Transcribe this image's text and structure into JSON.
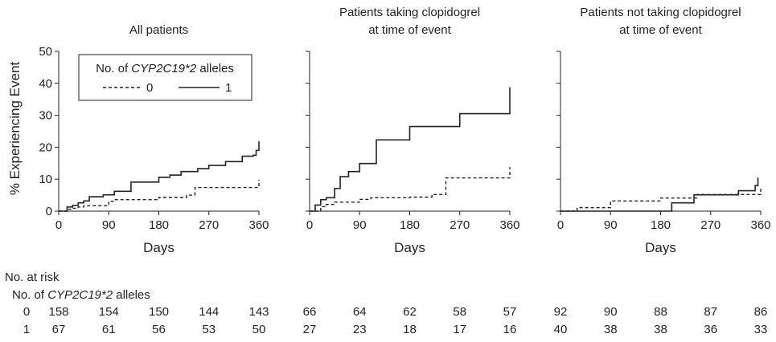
{
  "chart_data": [
    {
      "type": "line",
      "title": "All patients",
      "xlabel": "Days",
      "ylabel": "% Experiencing Event",
      "xlim": [
        0,
        360
      ],
      "ylim": [
        0,
        50
      ],
      "xticks": [
        "0",
        "90",
        "180",
        "270",
        "360"
      ],
      "yticks": [
        "0",
        "10",
        "20",
        "30",
        "40",
        "50"
      ],
      "legend": {
        "title_prefix": "No. of ",
        "title_gene": "CYP2C19*2",
        "title_suffix": " alleles",
        "position": "top-left",
        "entries": [
          {
            "label": "0",
            "style": "dashed"
          },
          {
            "label": "1",
            "style": "solid"
          }
        ]
      },
      "series": [
        {
          "name": "0",
          "style": "dashed",
          "x": [
            0,
            15,
            25,
            35,
            45,
            90,
            100,
            180,
            230,
            245,
            355,
            360
          ],
          "y": [
            0,
            0.6,
            0.9,
            1.3,
            1.7,
            3.1,
            3.6,
            4.3,
            5.0,
            7.4,
            7.4,
            9.8
          ]
        },
        {
          "name": "1",
          "style": "solid",
          "x": [
            0,
            15,
            25,
            35,
            45,
            55,
            80,
            100,
            130,
            180,
            200,
            220,
            250,
            270,
            300,
            330,
            350,
            355,
            360
          ],
          "y": [
            0,
            1.3,
            1.8,
            2.6,
            3.2,
            4.5,
            5.1,
            6.2,
            9.1,
            10.6,
            11.3,
            12.4,
            13.3,
            14.3,
            15.5,
            17.2,
            17.5,
            19.0,
            21.9
          ]
        }
      ]
    },
    {
      "type": "line",
      "title_lines": [
        "Patients taking clopidogrel",
        "at time of event"
      ],
      "xlabel": "Days",
      "xlim": [
        0,
        360
      ],
      "ylim": [
        0,
        50
      ],
      "xticks": [
        "0",
        "90",
        "180",
        "270",
        "360"
      ],
      "series": [
        {
          "name": "0",
          "style": "dashed",
          "x": [
            0,
            20,
            30,
            45,
            90,
            110,
            140,
            180,
            220,
            245,
            360
          ],
          "y": [
            0,
            1.4,
            2.1,
            2.8,
            3.7,
            4.2,
            4.2,
            4.4,
            5.2,
            10.4,
            13.8
          ]
        },
        {
          "name": "1",
          "style": "solid",
          "x": [
            0,
            10,
            20,
            30,
            45,
            55,
            70,
            90,
            120,
            150,
            180,
            200,
            270,
            360
          ],
          "y": [
            0,
            1.9,
            3.6,
            4.2,
            7.1,
            10.8,
            12.4,
            14.9,
            22.3,
            22.3,
            26.5,
            26.5,
            30.5,
            38.8
          ]
        }
      ]
    },
    {
      "type": "line",
      "title_lines": [
        "Patients not taking clopidogrel",
        "at time of event"
      ],
      "xlabel": "Days",
      "xlim": [
        0,
        360
      ],
      "ylim": [
        0,
        50
      ],
      "xticks": [
        "0",
        "90",
        "180",
        "270",
        "360"
      ],
      "series": [
        {
          "name": "0",
          "style": "dashed",
          "x": [
            0,
            30,
            90,
            180,
            245,
            360
          ],
          "y": [
            0,
            1.1,
            3.2,
            4.1,
            5.2,
            7.0
          ]
        },
        {
          "name": "1",
          "style": "solid",
          "x": [
            0,
            200,
            240,
            320,
            350,
            355
          ],
          "y": [
            0,
            2.6,
            5.1,
            6.4,
            8.0,
            10.5
          ]
        }
      ]
    }
  ],
  "risk_table": {
    "heading": "No. at risk",
    "subheading_prefix": "No. of ",
    "subheading_gene": "CYP2C19*2",
    "subheading_suffix": " alleles",
    "rows": [
      {
        "label": "0",
        "values": [
          [
            "158",
            "154",
            "150",
            "144",
            "143"
          ],
          [
            "66",
            "64",
            "62",
            "58",
            "57"
          ],
          [
            "92",
            "90",
            "88",
            "87",
            "86"
          ]
        ]
      },
      {
        "label": "1",
        "values": [
          [
            "67",
            "61",
            "56",
            "53",
            "50"
          ],
          [
            "27",
            "23",
            "18",
            "17",
            "16"
          ],
          [
            "40",
            "38",
            "38",
            "36",
            "33"
          ]
        ]
      }
    ]
  }
}
